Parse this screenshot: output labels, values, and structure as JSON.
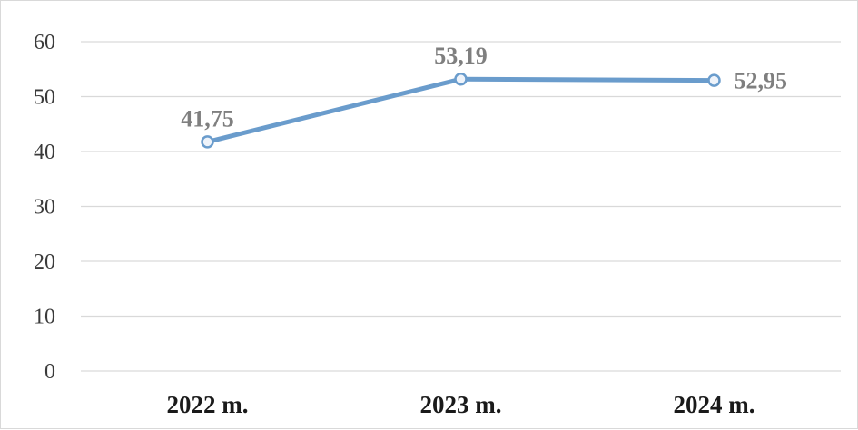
{
  "chart_data": {
    "type": "line",
    "categories": [
      "2022 m.",
      "2023 m.",
      "2024 m."
    ],
    "series": [
      {
        "values": [
          41.75,
          53.19,
          52.95
        ],
        "data_labels": [
          "41,75",
          "53,19",
          "52,95"
        ],
        "color": "#6a9ccc"
      }
    ],
    "y_ticks": [
      "0",
      "10",
      "20",
      "30",
      "40",
      "50",
      "60"
    ],
    "ylim": [
      0,
      60
    ],
    "grid": true,
    "legend": "none",
    "title": "",
    "xlabel": "",
    "ylabel": ""
  },
  "colors": {
    "line": "#6a9ccc",
    "grid": "#d9d9d9",
    "data_label": "#7f7f7f"
  }
}
